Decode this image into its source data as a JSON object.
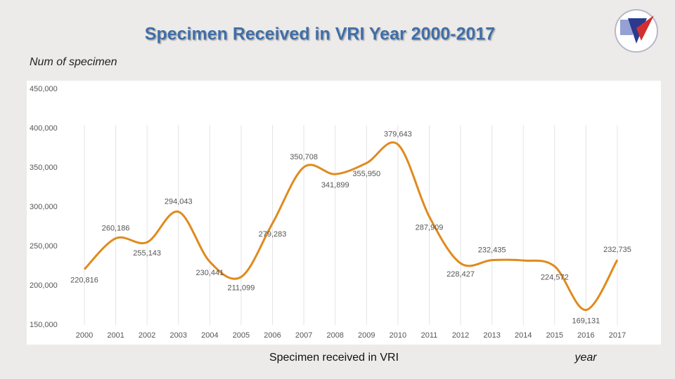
{
  "chart_data": {
    "type": "line",
    "title": "Specimen Received in VRI Year 2000-2017",
    "y_label": "Num of specimen",
    "x_label": "year",
    "categories": [
      "2000",
      "2001",
      "2002",
      "2003",
      "2004",
      "2005",
      "2006",
      "2007",
      "2008",
      "2009",
      "2010",
      "2011",
      "2012",
      "2013",
      "2014",
      "2015",
      "2016",
      "2017"
    ],
    "series": [
      {
        "name": "Specimen received in VRI",
        "color": "#e08a1e",
        "values": [
          220816,
          260186,
          255143,
          294043,
          230441,
          211099,
          279283,
          350708,
          341899,
          355950,
          379643,
          287909,
          228427,
          232435,
          232000,
          224572,
          169131,
          232735
        ],
        "value_labels": [
          "220,816",
          "260,186",
          "255,143",
          "294,043",
          "230,441",
          "211,099",
          "279,283",
          "350,708",
          "341,899",
          "355,950",
          "379,643",
          "287,909",
          "228,427",
          "232,435",
          null,
          "224,572",
          "169,131",
          "232,735"
        ]
      }
    ],
    "ylim": [
      150000,
      450000
    ],
    "yticks": [
      {
        "value": 150000,
        "label": "150,000"
      },
      {
        "value": 200000,
        "label": "200,000"
      },
      {
        "value": 250000,
        "label": "250,000"
      },
      {
        "value": 300000,
        "label": "300,000"
      },
      {
        "value": 350000,
        "label": "350,000"
      },
      {
        "value": 400000,
        "label": "400,000"
      },
      {
        "value": 450000,
        "label": "450,000"
      }
    ],
    "grid": true
  }
}
